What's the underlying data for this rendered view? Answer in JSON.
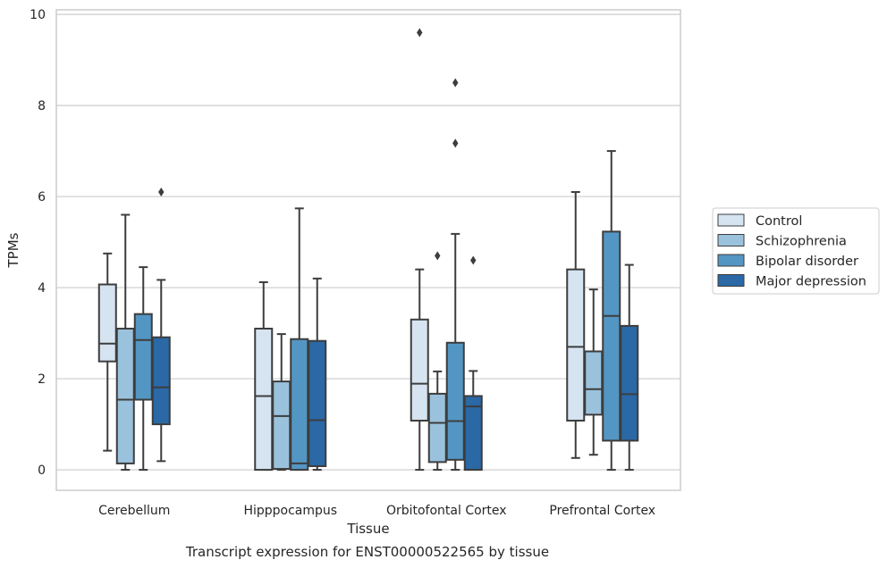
{
  "caption": "Transcript expression for ENST00000522565 by tissue",
  "chart_data": {
    "type": "box",
    "title": "",
    "xlabel": "Tissue",
    "ylabel": "TPMs",
    "ylim": [
      -0.45,
      10.1
    ],
    "yticks": [
      0,
      2,
      4,
      6,
      8,
      10
    ],
    "grid": "horizontal",
    "legend_position": "right, outside plot",
    "categories": [
      "Cerebellum",
      "Hipppocampus",
      "Orbitofontal Cortex",
      "Prefrontal Cortex"
    ],
    "series": [
      {
        "name": "Control",
        "color": "#d6e4f1",
        "boxes": [
          {
            "whislo": 0.42,
            "q1": 2.38,
            "med": 2.77,
            "q3": 4.07,
            "whishi": 4.75,
            "fliers": []
          },
          {
            "whislo": 0.0,
            "q1": 0.0,
            "med": 1.62,
            "q3": 3.1,
            "whishi": 4.12,
            "fliers": []
          },
          {
            "whislo": 0.0,
            "q1": 1.08,
            "med": 1.89,
            "q3": 3.3,
            "whishi": 4.4,
            "fliers": [
              9.6
            ]
          },
          {
            "whislo": 0.26,
            "q1": 1.08,
            "med": 2.7,
            "q3": 4.4,
            "whishi": 6.1,
            "fliers": []
          }
        ]
      },
      {
        "name": "Schizophrenia",
        "color": "#9ac2dd",
        "boxes": [
          {
            "whislo": 0.0,
            "q1": 0.14,
            "med": 1.54,
            "q3": 3.1,
            "whishi": 5.6,
            "fliers": []
          },
          {
            "whislo": 0.0,
            "q1": 0.02,
            "med": 1.18,
            "q3": 1.94,
            "whishi": 2.98,
            "fliers": []
          },
          {
            "whislo": 0.0,
            "q1": 0.17,
            "med": 1.03,
            "q3": 1.67,
            "whishi": 2.16,
            "fliers": [
              4.7
            ]
          },
          {
            "whislo": 0.33,
            "q1": 1.21,
            "med": 1.77,
            "q3": 2.6,
            "whishi": 3.96,
            "fliers": []
          }
        ]
      },
      {
        "name": "Bipolar disorder",
        "color": "#5496c3",
        "boxes": [
          {
            "whislo": 0.0,
            "q1": 1.54,
            "med": 2.85,
            "q3": 3.42,
            "whishi": 4.45,
            "fliers": []
          },
          {
            "whislo": 0.0,
            "q1": 0.0,
            "med": 0.14,
            "q3": 2.87,
            "whishi": 5.74,
            "fliers": []
          },
          {
            "whislo": 0.0,
            "q1": 0.22,
            "med": 1.07,
            "q3": 2.79,
            "whishi": 5.18,
            "fliers": [
              7.17,
              8.5
            ]
          },
          {
            "whislo": 0.0,
            "q1": 0.64,
            "med": 3.38,
            "q3": 5.23,
            "whishi": 7.0,
            "fliers": []
          }
        ]
      },
      {
        "name": "Major depression",
        "color": "#2a68a6",
        "boxes": [
          {
            "whislo": 0.19,
            "q1": 1.0,
            "med": 1.81,
            "q3": 2.91,
            "whishi": 4.17,
            "fliers": [
              6.1
            ]
          },
          {
            "whislo": 0.0,
            "q1": 0.08,
            "med": 1.09,
            "q3": 2.83,
            "whishi": 4.2,
            "fliers": []
          },
          {
            "whislo": 0.0,
            "q1": 0.0,
            "med": 1.39,
            "q3": 1.62,
            "whishi": 2.17,
            "fliers": [
              4.6
            ]
          },
          {
            "whislo": 0.0,
            "q1": 0.64,
            "med": 1.66,
            "q3": 3.16,
            "whishi": 4.5,
            "fliers": []
          }
        ]
      }
    ]
  }
}
